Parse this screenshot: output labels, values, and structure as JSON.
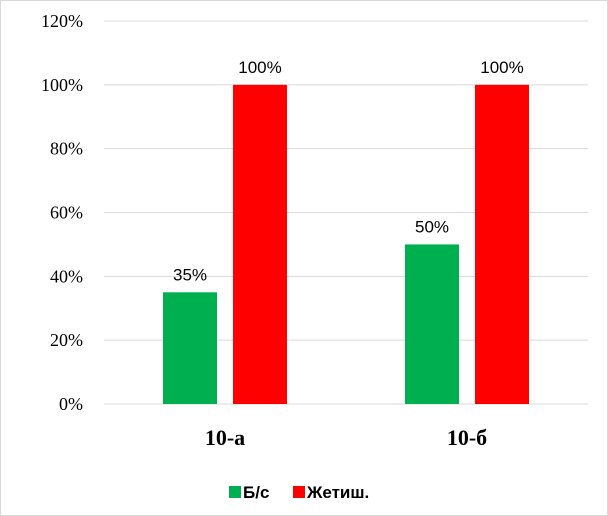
{
  "chart_data": {
    "type": "bar",
    "categories": [
      "10-а",
      "10-б"
    ],
    "series": [
      {
        "name": "Б/с",
        "values": [
          35,
          50
        ],
        "labels": [
          "35%",
          "50%"
        ],
        "color": "#00b050"
      },
      {
        "name": "Жетиш.",
        "values": [
          100,
          100
        ],
        "labels": [
          "100%",
          "100%"
        ],
        "color": "#ff0000"
      }
    ],
    "ylim": [
      0,
      120
    ],
    "yticks": [
      0,
      20,
      40,
      60,
      80,
      100,
      120
    ],
    "ytick_labels": [
      "0%",
      "20%",
      "40%",
      "60%",
      "80%",
      "100%",
      "120%"
    ],
    "grid": true,
    "legend": "bottom",
    "gridline_color": "#d9d9d9"
  }
}
